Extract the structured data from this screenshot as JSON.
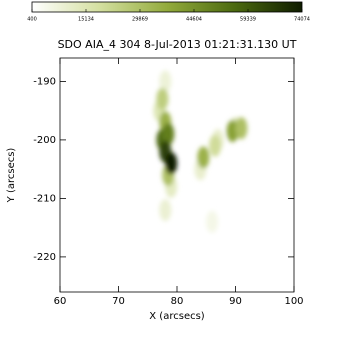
{
  "chart_data": {
    "type": "image",
    "title": "SDO AIA_4 304   8-Jul-2013 01:21:31.130 UT",
    "xlabel": "X (arcsecs)",
    "ylabel": "Y (arcsecs)",
    "xlim": [
      60,
      100
    ],
    "xticks": [
      60,
      70,
      80,
      90,
      100
    ],
    "ylim": [
      -226,
      -186
    ],
    "yticks": [
      -190,
      -200,
      -210,
      -220
    ],
    "colorbar": {
      "lim": [
        400,
        74074
      ],
      "ticks": [
        400,
        15134,
        29869,
        44604,
        59339,
        74074
      ]
    },
    "colormap": [
      "#ffffff",
      "#d4dfa0",
      "#93ab3c",
      "#4c6a10",
      "#0f1c00"
    ],
    "x": [
      78,
      77,
      79,
      78,
      86,
      84,
      87,
      90,
      77.5,
      78,
      78.5,
      84.5,
      89.5,
      91,
      86.5,
      77.5,
      78.5,
      78,
      79
    ],
    "y": [
      -190,
      -195,
      -208,
      -212,
      -214,
      -205,
      -200,
      -198,
      -193,
      -197,
      -206,
      -203,
      -198.5,
      -198,
      -201,
      -200,
      -199,
      -202,
      -204
    ],
    "values": [
      8000,
      15000,
      12000,
      9000,
      5000,
      10000,
      10000,
      14000,
      25000,
      35000,
      30000,
      35000,
      40000,
      30000,
      20000,
      55000,
      50000,
      65000,
      74000
    ]
  }
}
